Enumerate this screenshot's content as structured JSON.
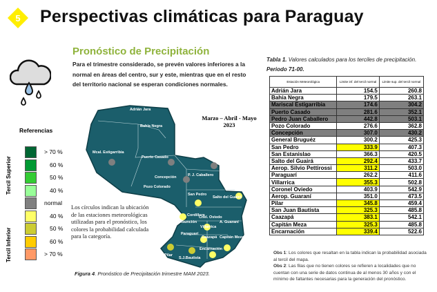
{
  "header": {
    "section_number": "5",
    "title": "Perspectivas climáticas para Paraguay"
  },
  "intro": {
    "subtitle": "Pronóstico de Precipitación",
    "text": "Para el trimestre considerado, se prevén valores inferiores a la normal en áreas del centro, sur y este, mientras que en el resto del territorio nacional se esperan condiciones normales."
  },
  "legend": {
    "title": "Referencias",
    "upper_label": "Tercil Superior",
    "lower_label": "Tercil Inferior",
    "items": [
      {
        "label": "> 70 %",
        "color": "#006633"
      },
      {
        "label": "60 %",
        "color": "#009933"
      },
      {
        "label": "50 %",
        "color": "#33cc33"
      },
      {
        "label": "40 %",
        "color": "#99ff99"
      },
      {
        "label": "normal",
        "color": "#808080"
      },
      {
        "label": "40  %",
        "color": "#ffff66"
      },
      {
        "label": "50  %",
        "color": "#cccc33"
      },
      {
        "label": "60 %",
        "color": "#ffcc00"
      },
      {
        "label": "> 70 %",
        "color": "#ff9966"
      }
    ]
  },
  "map": {
    "period": "Marzo – Abril - Mayo",
    "year": "2023",
    "note": "Los círculos indican la ubicación de las estaciones meteorológicas utilizadas para el pronóstico, los colores la probabilidad calculada para la categoría.",
    "labels": [
      "Adrián Jara",
      "Bahía Negra",
      "Mcal. Estigarribia",
      "Puerto Casado",
      "Concepción",
      "P. J. Caballero",
      "Pozo Colorado",
      "San Pedro",
      "Salto del Guairá",
      "Cordillera",
      "Asunción",
      "Cnel. Oviedo",
      "A. Guaraní",
      "Villarrica",
      "Paraguarí",
      "Caazapá",
      "Capitán Meza",
      "Pilar",
      "Encarnación",
      "S.J.Bautista"
    ],
    "fill": "#1b5e6b",
    "dot_normal": "#7f7f7f",
    "dot_40": "#ffff66",
    "dot_50": "#cccc33"
  },
  "figure_caption": {
    "bold": "Figura 4",
    "text": ". Pronóstico de Precipitación trimestre MAM 2023."
  },
  "table": {
    "caption_bold": "Tabla 1.",
    "caption": " Valores calculados para los terciles de precipitación.",
    "period": "Periodo 71-00.",
    "headers": [
      "Estación Meteorológica",
      "Limite inf. del tercil normal",
      "Limite sup. del tercil normal"
    ],
    "rows": [
      [
        "Adrián Jara",
        "154.5",
        "260.8",
        ""
      ],
      [
        "Bahía Negra",
        "179.5",
        "263.1",
        ""
      ],
      [
        "Mariscal Estigarribia",
        "174.6",
        "304.2",
        "grey"
      ],
      [
        "Puerto Casado",
        "281.6",
        "352.1",
        "grey"
      ],
      [
        "Pedro Juan Caballero",
        "442.8",
        "503.1",
        "grey"
      ],
      [
        "Pozo Colorado",
        "276.6",
        "362.8",
        ""
      ],
      [
        "Concepción",
        "307.0",
        "430.2",
        "grey"
      ],
      [
        "General Bruguéz",
        "300.2",
        "425.3",
        ""
      ],
      [
        "San Pedro",
        "333.9",
        "407.3",
        "yel"
      ],
      [
        "San Estanislao",
        "366.3",
        "420.5",
        ""
      ],
      [
        "Salto del Guairá",
        "292.4",
        "433.7",
        "yel"
      ],
      [
        "Aerop. Silvio Pettirossi",
        "311.2",
        "503.0",
        "yel"
      ],
      [
        "Paraguarí",
        "262.2",
        "411.6",
        ""
      ],
      [
        "Villarrica",
        "355.3",
        "502.8",
        "yel"
      ],
      [
        "Coronel Oviedo",
        "403.9",
        "542.9",
        ""
      ],
      [
        "Aerop. Guaraní",
        "351.0",
        "473.5",
        ""
      ],
      [
        "Pilar",
        "345.8",
        "459.4",
        "yel"
      ],
      [
        "San Juan Bautista",
        "325.3",
        "485.8",
        "yel"
      ],
      [
        "Caazapá",
        "383.1",
        "542.1",
        "yel"
      ],
      [
        "Capitán Meza",
        "325.3",
        "485.8",
        "yel"
      ],
      [
        "Encarnación",
        "339.4",
        "522.6",
        "yel"
      ]
    ]
  },
  "obs": {
    "obs1_label": "Obs 1",
    "obs1": ": Los colores que resaltan en la tabla indican la probabilidad asociada al tercil del mapa.",
    "obs2_label": "Obs 2",
    "obs2": ": Las filas que no tienen colores se refieren a localidades que no cuentan con una serie de datos continua de al menos 30 años y con el mínimo de faltantes necesarias para la generación del pronóstico."
  }
}
